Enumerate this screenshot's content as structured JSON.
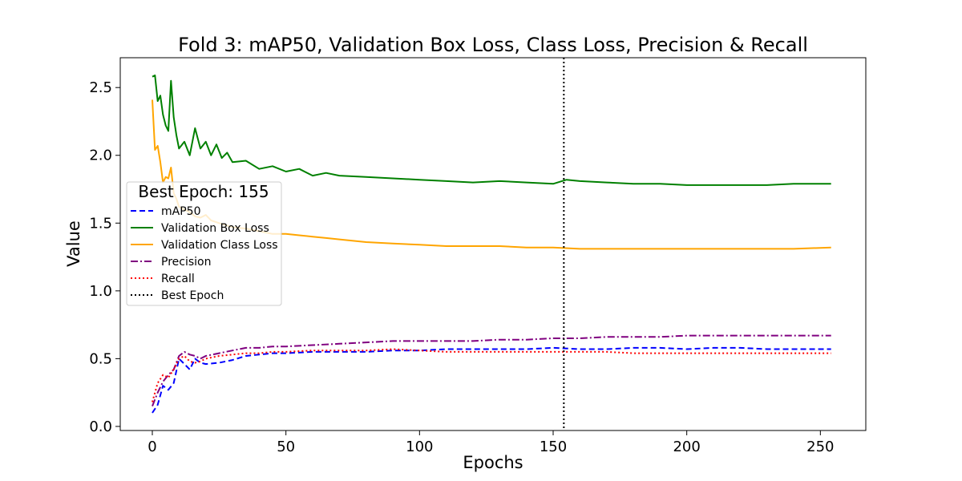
{
  "chart_data": {
    "type": "line",
    "title": "Fold 3: mAP50, Validation Box Loss, Class Loss, Precision & Recall",
    "xlabel": "Epochs",
    "ylabel": "Value",
    "xlim": [
      -12,
      267
    ],
    "ylim": [
      -0.03,
      2.72
    ],
    "xticks": [
      0,
      50,
      100,
      150,
      200,
      250
    ],
    "xtick_labels": [
      "0",
      "50",
      "100",
      "150",
      "200",
      "250"
    ],
    "yticks": [
      0.0,
      0.5,
      1.0,
      1.5,
      2.0,
      2.5
    ],
    "ytick_labels": [
      "0.0",
      "0.5",
      "1.0",
      "1.5",
      "2.0",
      "2.5"
    ],
    "grid": false,
    "legend": {
      "title": "Best Epoch: 155",
      "placement": "center-left",
      "entries": [
        "mAP50",
        "Validation Box Loss",
        "Validation Class Loss",
        "Precision",
        "Recall",
        "Best Epoch"
      ]
    },
    "best_epoch": 154,
    "series": [
      {
        "name": "mAP50",
        "color": "#0000ff",
        "dash": "dashed",
        "x": [
          0,
          2,
          4,
          6,
          8,
          10,
          12,
          14,
          16,
          18,
          20,
          25,
          30,
          35,
          40,
          45,
          50,
          60,
          70,
          80,
          90,
          100,
          110,
          120,
          130,
          140,
          150,
          160,
          170,
          180,
          190,
          200,
          210,
          220,
          230,
          240,
          254
        ],
        "y": [
          0.1,
          0.16,
          0.3,
          0.27,
          0.32,
          0.5,
          0.46,
          0.42,
          0.5,
          0.47,
          0.46,
          0.47,
          0.49,
          0.52,
          0.53,
          0.54,
          0.54,
          0.55,
          0.55,
          0.55,
          0.56,
          0.56,
          0.57,
          0.57,
          0.57,
          0.57,
          0.58,
          0.57,
          0.57,
          0.58,
          0.58,
          0.57,
          0.58,
          0.58,
          0.57,
          0.57,
          0.57
        ]
      },
      {
        "name": "Validation Box Loss",
        "color": "#008000",
        "dash": "solid",
        "x": [
          0,
          1,
          2,
          3,
          4,
          5,
          6,
          7,
          8,
          9,
          10,
          12,
          14,
          16,
          18,
          20,
          22,
          24,
          26,
          28,
          30,
          35,
          40,
          45,
          50,
          55,
          60,
          65,
          70,
          80,
          90,
          100,
          110,
          120,
          130,
          140,
          150,
          155,
          160,
          170,
          180,
          190,
          200,
          210,
          220,
          230,
          240,
          254
        ],
        "y": [
          2.58,
          2.59,
          2.4,
          2.44,
          2.3,
          2.22,
          2.18,
          2.55,
          2.28,
          2.15,
          2.05,
          2.1,
          2.0,
          2.2,
          2.05,
          2.1,
          2.0,
          2.08,
          1.98,
          2.02,
          1.95,
          1.96,
          1.9,
          1.92,
          1.88,
          1.9,
          1.85,
          1.87,
          1.85,
          1.84,
          1.83,
          1.82,
          1.81,
          1.8,
          1.81,
          1.8,
          1.79,
          1.82,
          1.81,
          1.8,
          1.79,
          1.79,
          1.78,
          1.78,
          1.78,
          1.78,
          1.79,
          1.79
        ]
      },
      {
        "name": "Validation Class Loss",
        "color": "#ffa500",
        "dash": "solid",
        "x": [
          0,
          1,
          2,
          3,
          4,
          5,
          6,
          7,
          8,
          9,
          10,
          12,
          14,
          16,
          18,
          20,
          22,
          25,
          30,
          35,
          40,
          45,
          50,
          55,
          60,
          65,
          70,
          80,
          90,
          100,
          110,
          120,
          130,
          140,
          150,
          160,
          170,
          180,
          190,
          200,
          210,
          220,
          230,
          240,
          254
        ],
        "y": [
          2.41,
          2.04,
          2.07,
          1.95,
          1.8,
          1.84,
          1.83,
          1.91,
          1.72,
          1.68,
          1.62,
          1.6,
          1.58,
          1.55,
          1.54,
          1.56,
          1.52,
          1.5,
          1.47,
          1.46,
          1.44,
          1.42,
          1.42,
          1.41,
          1.4,
          1.39,
          1.38,
          1.36,
          1.35,
          1.34,
          1.33,
          1.33,
          1.33,
          1.32,
          1.32,
          1.31,
          1.31,
          1.31,
          1.31,
          1.31,
          1.31,
          1.31,
          1.31,
          1.31,
          1.32
        ]
      },
      {
        "name": "Precision",
        "color": "#800080",
        "dash": "dashdot",
        "x": [
          0,
          2,
          4,
          6,
          8,
          10,
          12,
          14,
          16,
          18,
          20,
          25,
          30,
          35,
          40,
          45,
          50,
          60,
          70,
          80,
          90,
          100,
          110,
          120,
          130,
          140,
          150,
          160,
          170,
          180,
          190,
          200,
          210,
          220,
          230,
          240,
          254
        ],
        "y": [
          0.15,
          0.25,
          0.33,
          0.38,
          0.42,
          0.52,
          0.55,
          0.53,
          0.52,
          0.5,
          0.52,
          0.54,
          0.56,
          0.58,
          0.58,
          0.59,
          0.59,
          0.6,
          0.61,
          0.62,
          0.63,
          0.63,
          0.63,
          0.63,
          0.64,
          0.64,
          0.65,
          0.65,
          0.66,
          0.66,
          0.66,
          0.67,
          0.67,
          0.67,
          0.67,
          0.67,
          0.67
        ]
      },
      {
        "name": "Recall",
        "color": "#ff0000",
        "dash": "dotted",
        "x": [
          0,
          2,
          4,
          6,
          8,
          10,
          12,
          14,
          16,
          18,
          20,
          25,
          30,
          35,
          40,
          45,
          50,
          60,
          70,
          80,
          90,
          100,
          110,
          120,
          130,
          140,
          150,
          160,
          170,
          180,
          190,
          200,
          210,
          220,
          230,
          240,
          254
        ],
        "y": [
          0.18,
          0.32,
          0.38,
          0.36,
          0.42,
          0.5,
          0.52,
          0.48,
          0.47,
          0.48,
          0.5,
          0.52,
          0.53,
          0.54,
          0.54,
          0.55,
          0.55,
          0.56,
          0.56,
          0.56,
          0.57,
          0.56,
          0.55,
          0.55,
          0.55,
          0.55,
          0.55,
          0.55,
          0.55,
          0.54,
          0.54,
          0.54,
          0.54,
          0.54,
          0.54,
          0.54,
          0.54
        ]
      }
    ]
  }
}
